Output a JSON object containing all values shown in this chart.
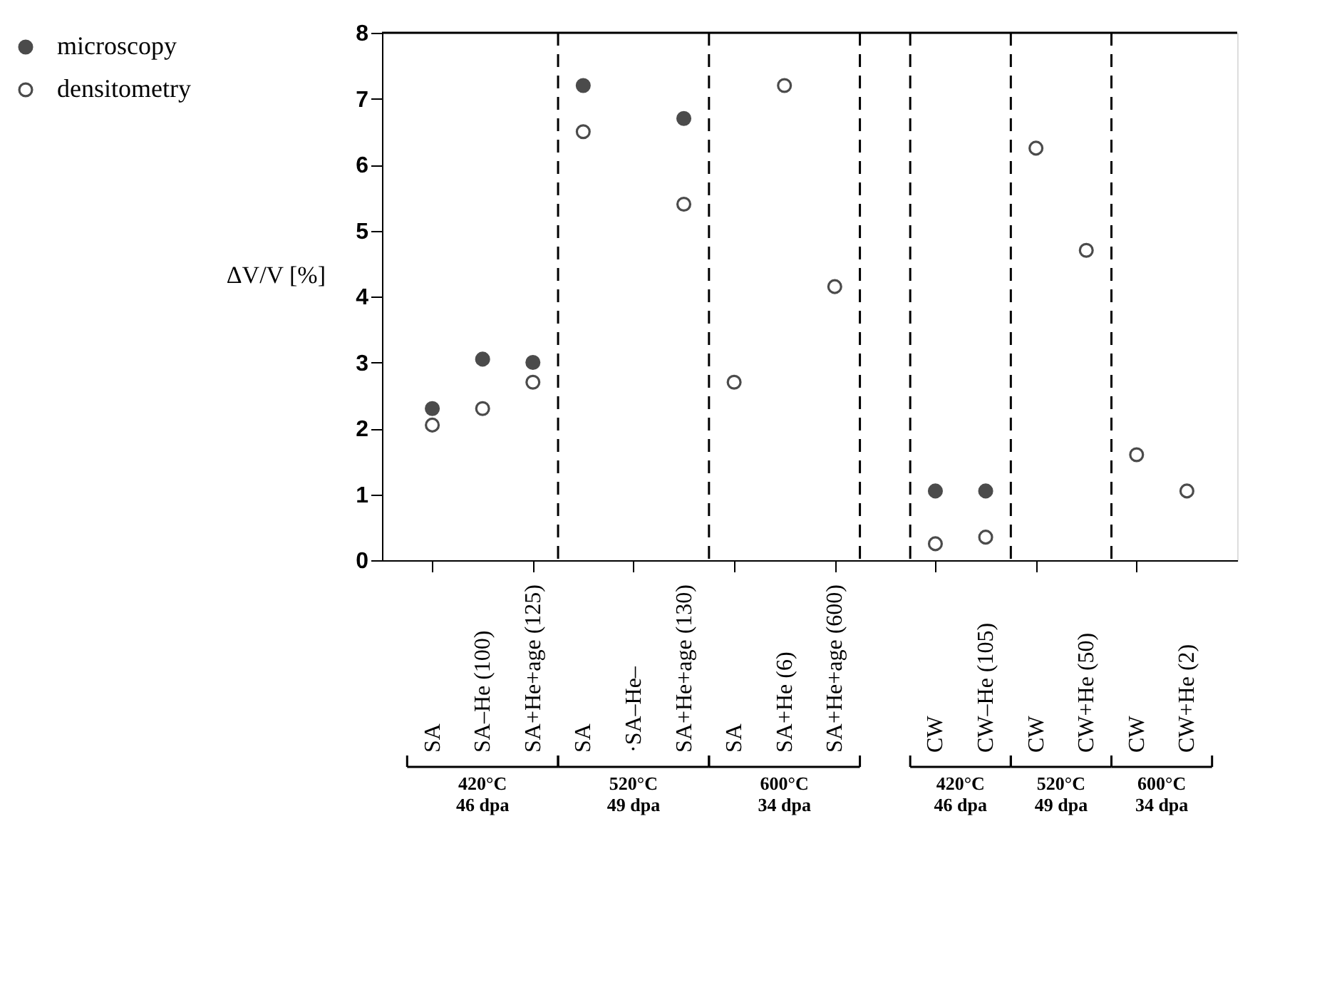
{
  "chart_data": {
    "type": "scatter",
    "ylabel": "ΔV/V [%]",
    "categories": [
      "SA",
      "SA–He (100)",
      "SA+He+age (125)",
      "SA",
      "·SA–He–",
      "SA+He+age (130)",
      "SA",
      "SA+He (6)",
      "SA+He+age (600)",
      null,
      "CW",
      "CW–He (105)",
      "CW",
      "CW+He (50)",
      "CW",
      "CW+He (2)"
    ],
    "ylim": [
      0,
      8
    ],
    "yticks": [
      0,
      1,
      2,
      3,
      4,
      5,
      6,
      7,
      8
    ],
    "series": [
      {
        "name": "microscopy",
        "color": "#000000",
        "marker": "circle",
        "values": [
          2.3,
          3.05,
          3.0,
          7.2,
          null,
          6.7,
          null,
          null,
          null,
          null,
          1.05,
          1.05,
          null,
          null,
          null,
          null
        ]
      },
      {
        "name": "densitometry",
        "color": "#000000",
        "marker": "circle-open",
        "values": [
          2.05,
          2.3,
          2.7,
          6.5,
          null,
          5.4,
          2.7,
          7.2,
          4.15,
          null,
          0.25,
          0.35,
          6.25,
          4.7,
          1.6,
          1.05
        ]
      }
    ],
    "annotations": [
      "420°C\n46 dpa",
      "520°C\n49 dpa",
      "600°C\n34 dpa",
      "420°C\n46 dpa",
      "520°C\n49 dpa",
      "600°C\n34 dpa"
    ],
    "legend": "top left",
    "grid": false
  }
}
